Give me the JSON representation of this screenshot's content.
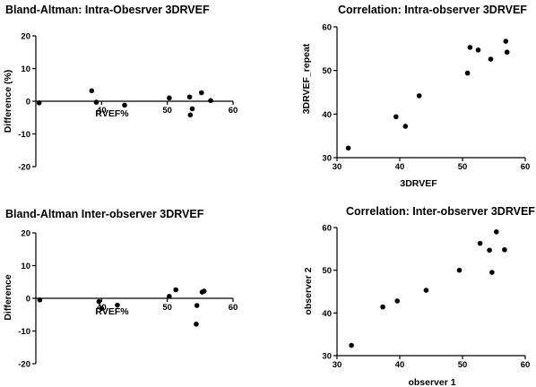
{
  "chart_data": [
    {
      "type": "scatter",
      "title": "Bland-Altman: Intra-Obesrver 3DRVEF",
      "xlabel": "RVEF%",
      "ylabel": "Difference (%)",
      "xlim": [
        30,
        60
      ],
      "ylim": [
        -20,
        20
      ],
      "xticks": [
        "40",
        "50",
        "60"
      ],
      "yticks": [
        "-20",
        "-10",
        "0",
        "10",
        "20"
      ],
      "points": [
        [
          30.5,
          -0.5
        ],
        [
          38.5,
          3.2
        ],
        [
          39.2,
          -0.3
        ],
        [
          43.5,
          -1.2
        ],
        [
          50.3,
          1.0
        ],
        [
          53.4,
          1.3
        ],
        [
          53.5,
          -4.2
        ],
        [
          53.8,
          -2.3
        ],
        [
          55.2,
          2.6
        ],
        [
          56.6,
          0.2
        ]
      ]
    },
    {
      "type": "scatter",
      "title": "Correlation: Intra-observer 3DRVEF",
      "xlabel": "3DRVEF",
      "ylabel": "3DRVEF_repeat",
      "xlim": [
        30,
        60
      ],
      "ylim": [
        30,
        60
      ],
      "xticks": [
        "30",
        "40",
        "50",
        "60"
      ],
      "yticks": [
        "30",
        "40",
        "50",
        "60"
      ],
      "points": [
        [
          31.8,
          32.2
        ],
        [
          39.4,
          39.4
        ],
        [
          40.9,
          37.2
        ],
        [
          43.1,
          44.2
        ],
        [
          50.8,
          49.4
        ],
        [
          51.2,
          55.3
        ],
        [
          52.5,
          54.7
        ],
        [
          54.5,
          52.6
        ],
        [
          56.9,
          56.7
        ],
        [
          57.1,
          54.2
        ]
      ]
    },
    {
      "type": "scatter",
      "title": "Bland-Altman Inter-observer 3DRVEF",
      "xlabel": "RVEF%",
      "ylabel": "Difference",
      "xlim": [
        30,
        60
      ],
      "ylim": [
        -20,
        20
      ],
      "xticks": [
        "40",
        "50",
        "60"
      ],
      "yticks": [
        "-20",
        "-10",
        "0",
        "10",
        "20"
      ],
      "points": [
        [
          30.6,
          -0.5
        ],
        [
          39.6,
          -1.0
        ],
        [
          40.0,
          -3.1
        ],
        [
          42.4,
          -2.1
        ],
        [
          50.3,
          0.6
        ],
        [
          51.3,
          2.6
        ],
        [
          54.5,
          -2.2
        ],
        [
          55.3,
          1.9
        ],
        [
          55.6,
          2.2
        ],
        [
          54.4,
          -7.9
        ]
      ]
    },
    {
      "type": "scatter",
      "title": "Correlation: Inter-observer 3DRVEF",
      "xlabel": "observer 1",
      "ylabel": "observer 2",
      "xlim": [
        30,
        60
      ],
      "ylim": [
        30,
        60
      ],
      "xticks": [
        "30",
        "40",
        "50",
        "60"
      ],
      "yticks": [
        "30",
        "40",
        "50",
        "60"
      ],
      "points": [
        [
          32.3,
          32.4
        ],
        [
          37.3,
          41.4
        ],
        [
          39.6,
          42.8
        ],
        [
          44.2,
          45.3
        ],
        [
          49.5,
          50.0
        ],
        [
          52.8,
          56.3
        ],
        [
          54.3,
          54.7
        ],
        [
          54.7,
          49.5
        ],
        [
          55.4,
          59.0
        ],
        [
          56.7,
          54.8
        ]
      ]
    }
  ]
}
